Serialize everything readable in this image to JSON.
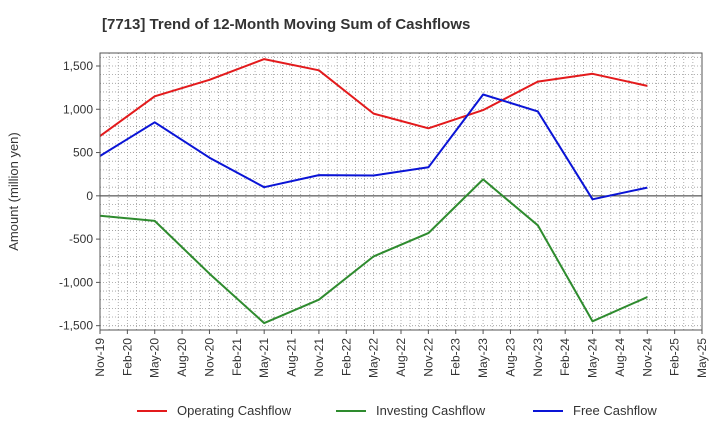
{
  "chart_data": {
    "type": "line",
    "title": "[7713]  Trend of 12-Month Moving Sum of Cashflows",
    "ylabel": "Amount (million yen)",
    "xlabel": "",
    "ylim": [
      -1550,
      1650
    ],
    "yticks": [
      1500,
      1000,
      500,
      0,
      -500,
      -1000,
      -1500
    ],
    "ytick_labels": [
      "1,500",
      "1,000",
      "500",
      "0",
      "-500",
      "-1,000",
      "-1,500"
    ],
    "x_tick_labels": [
      "Nov-19",
      "Feb-20",
      "May-20",
      "Aug-20",
      "Nov-20",
      "Feb-21",
      "May-21",
      "Aug-21",
      "Nov-21",
      "Feb-22",
      "May-22",
      "Aug-22",
      "Nov-22",
      "Feb-23",
      "May-23",
      "Aug-23",
      "Nov-23",
      "Feb-24",
      "May-24",
      "Aug-24",
      "Nov-24",
      "Feb-25",
      "May-25"
    ],
    "grid": true,
    "legend_position": "bottom",
    "series": [
      {
        "name": "Operating Cashflow",
        "color": "#e31a1c",
        "points": [
          {
            "x": "Nov-19",
            "y": 690
          },
          {
            "x": "May-20",
            "y": 1150
          },
          {
            "x": "Nov-20",
            "y": 1340
          },
          {
            "x": "May-21",
            "y": 1580
          },
          {
            "x": "Nov-21",
            "y": 1450
          },
          {
            "x": "May-22",
            "y": 950
          },
          {
            "x": "Nov-22",
            "y": 780
          },
          {
            "x": "May-23",
            "y": 990
          },
          {
            "x": "Nov-23",
            "y": 1320
          },
          {
            "x": "May-24",
            "y": 1410
          },
          {
            "x": "Nov-24",
            "y": 1270
          }
        ]
      },
      {
        "name": "Investing Cashflow",
        "color": "#2e8b2e",
        "points": [
          {
            "x": "Nov-19",
            "y": -230
          },
          {
            "x": "May-20",
            "y": -290
          },
          {
            "x": "Nov-20",
            "y": -900
          },
          {
            "x": "May-21",
            "y": -1470
          },
          {
            "x": "Nov-21",
            "y": -1200
          },
          {
            "x": "May-22",
            "y": -700
          },
          {
            "x": "Nov-22",
            "y": -430
          },
          {
            "x": "May-23",
            "y": 190
          },
          {
            "x": "Nov-23",
            "y": -340
          },
          {
            "x": "May-24",
            "y": -1450
          },
          {
            "x": "Nov-24",
            "y": -1170
          }
        ]
      },
      {
        "name": "Free Cashflow",
        "color": "#0a14d6",
        "points": [
          {
            "x": "Nov-19",
            "y": 460
          },
          {
            "x": "May-20",
            "y": 850
          },
          {
            "x": "Nov-20",
            "y": 440
          },
          {
            "x": "May-21",
            "y": 100
          },
          {
            "x": "Nov-21",
            "y": 240
          },
          {
            "x": "May-22",
            "y": 235
          },
          {
            "x": "Nov-22",
            "y": 330
          },
          {
            "x": "May-23",
            "y": 1170
          },
          {
            "x": "Nov-23",
            "y": 975
          },
          {
            "x": "May-24",
            "y": -40
          },
          {
            "x": "Nov-24",
            "y": 95
          }
        ]
      }
    ]
  }
}
